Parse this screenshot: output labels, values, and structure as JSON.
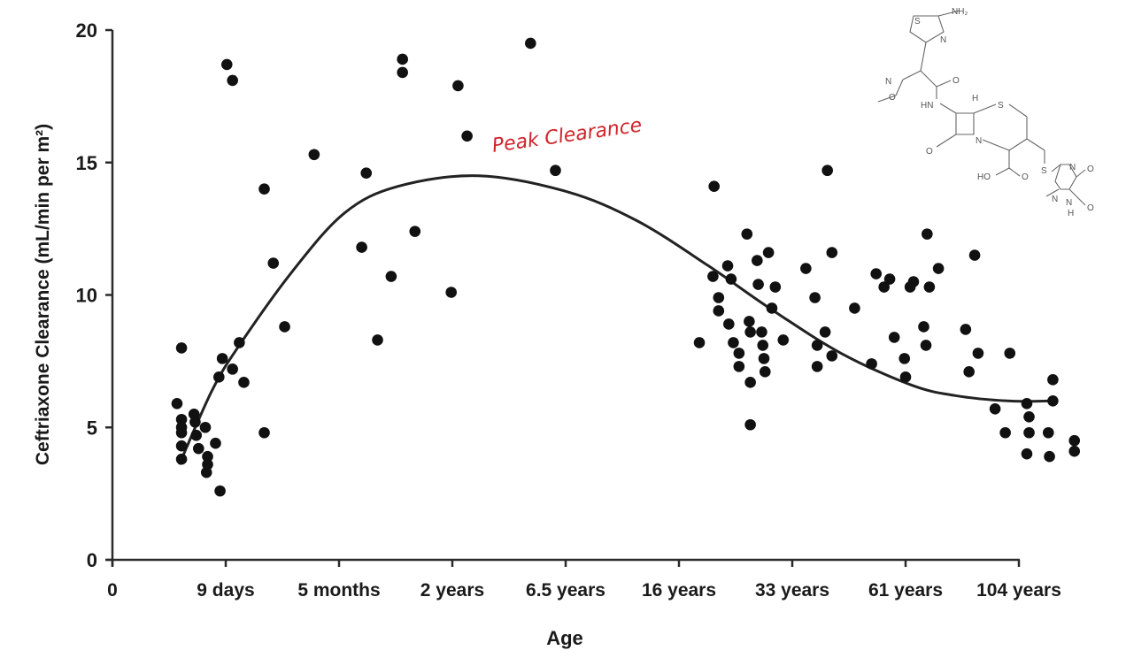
{
  "chart_data": {
    "type": "scatter",
    "title": "",
    "xlabel": "Age",
    "ylabel": "Ceftriaxone Clearance (mL/min per m²)",
    "x_tick_labels": [
      "0",
      "9 days",
      "5 months",
      "2 years",
      "6.5 years",
      "16 years",
      "33 years",
      "61 years",
      "104 years"
    ],
    "x_scale_note": "non-linear age axis; x given in tick-index units (0 = '0', 8 = '104 years')",
    "y_ticks": [
      0,
      5,
      10,
      15,
      20
    ],
    "ylim": [
      0,
      20
    ],
    "xlim": [
      0,
      8
    ],
    "grid": false,
    "legend": null,
    "annotations": [
      {
        "text": "Peak Clearance",
        "color": "#d0252c",
        "x": 3.3,
        "y": 16
      }
    ],
    "series": [
      {
        "name": "observed",
        "kind": "scatter",
        "color": "#111111",
        "points": [
          [
            0.57,
            5.9
          ],
          [
            0.61,
            8.0
          ],
          [
            0.61,
            5.3
          ],
          [
            0.61,
            5.0
          ],
          [
            0.61,
            4.8
          ],
          [
            0.61,
            4.3
          ],
          [
            0.61,
            3.8
          ],
          [
            0.73,
            5.2
          ],
          [
            0.72,
            5.5
          ],
          [
            0.74,
            4.7
          ],
          [
            0.76,
            4.2
          ],
          [
            0.82,
            5.0
          ],
          [
            0.84,
            3.9
          ],
          [
            0.84,
            3.6
          ],
          [
            0.83,
            3.3
          ],
          [
            0.91,
            4.4
          ],
          [
            0.95,
            2.6
          ],
          [
            0.94,
            6.9
          ],
          [
            0.97,
            7.6
          ],
          [
            1.06,
            7.2
          ],
          [
            1.12,
            8.2
          ],
          [
            1.16,
            6.7
          ],
          [
            1.01,
            18.7
          ],
          [
            1.06,
            18.1
          ],
          [
            1.34,
            14.0
          ],
          [
            1.42,
            11.2
          ],
          [
            1.34,
            4.8
          ],
          [
            1.52,
            8.8
          ],
          [
            1.78,
            15.3
          ],
          [
            2.2,
            11.8
          ],
          [
            2.24,
            14.6
          ],
          [
            2.34,
            8.3
          ],
          [
            2.46,
            10.7
          ],
          [
            2.56,
            18.9
          ],
          [
            2.56,
            18.4
          ],
          [
            2.67,
            12.4
          ],
          [
            2.99,
            10.1
          ],
          [
            3.05,
            17.9
          ],
          [
            3.13,
            16.0
          ],
          [
            3.69,
            19.5
          ],
          [
            3.91,
            14.7
          ],
          [
            5.18,
            8.2
          ],
          [
            5.31,
            14.1
          ],
          [
            5.3,
            10.7
          ],
          [
            5.35,
            9.9
          ],
          [
            5.35,
            9.4
          ],
          [
            5.43,
            11.1
          ],
          [
            5.46,
            10.6
          ],
          [
            5.44,
            8.9
          ],
          [
            5.48,
            8.2
          ],
          [
            5.53,
            7.8
          ],
          [
            5.53,
            7.3
          ],
          [
            5.6,
            12.3
          ],
          [
            5.62,
            9.0
          ],
          [
            5.63,
            8.6
          ],
          [
            5.63,
            6.7
          ],
          [
            5.63,
            5.1
          ],
          [
            5.69,
            11.3
          ],
          [
            5.7,
            10.4
          ],
          [
            5.73,
            8.6
          ],
          [
            5.74,
            8.1
          ],
          [
            5.75,
            7.6
          ],
          [
            5.76,
            7.1
          ],
          [
            5.79,
            11.6
          ],
          [
            5.82,
            9.5
          ],
          [
            5.85,
            10.3
          ],
          [
            5.92,
            8.3
          ],
          [
            6.12,
            11.0
          ],
          [
            6.2,
            9.9
          ],
          [
            6.22,
            8.1
          ],
          [
            6.22,
            7.3
          ],
          [
            6.29,
            8.6
          ],
          [
            6.31,
            14.7
          ],
          [
            6.35,
            11.6
          ],
          [
            6.35,
            7.7
          ],
          [
            6.55,
            9.5
          ],
          [
            6.7,
            7.4
          ],
          [
            6.74,
            10.8
          ],
          [
            6.81,
            10.3
          ],
          [
            6.86,
            10.6
          ],
          [
            6.9,
            8.4
          ],
          [
            6.99,
            7.6
          ],
          [
            7.0,
            6.9
          ],
          [
            7.07,
            10.5
          ],
          [
            7.04,
            10.3
          ],
          [
            7.16,
            8.8
          ],
          [
            7.18,
            8.1
          ],
          [
            7.19,
            12.3
          ],
          [
            7.21,
            10.3
          ],
          [
            7.29,
            11.0
          ],
          [
            7.61,
            11.5
          ],
          [
            7.53,
            8.7
          ],
          [
            7.56,
            7.1
          ],
          [
            7.64,
            7.8
          ],
          [
            7.79,
            5.7
          ],
          [
            7.92,
            7.8
          ],
          [
            7.88,
            4.8
          ],
          [
            8.07,
            5.9
          ],
          [
            8.09,
            5.4
          ],
          [
            8.09,
            4.8
          ],
          [
            8.07,
            4.0
          ],
          [
            8.26,
            4.8
          ],
          [
            8.27,
            3.9
          ],
          [
            8.3,
            6.8
          ],
          [
            8.3,
            6.0
          ],
          [
            8.49,
            4.5
          ],
          [
            8.49,
            4.1
          ]
        ]
      },
      {
        "name": "fitted curve",
        "kind": "line",
        "color": "#222222",
        "points": [
          [
            0.59,
            3.6
          ],
          [
            0.88,
            6.4
          ],
          [
            1.12,
            8.1
          ],
          [
            1.59,
            10.9
          ],
          [
            2.05,
            13.1
          ],
          [
            2.52,
            14.1
          ],
          [
            3.23,
            14.5
          ],
          [
            4.01,
            13.9
          ],
          [
            4.63,
            12.8
          ],
          [
            5.26,
            11.1
          ],
          [
            5.8,
            9.5
          ],
          [
            6.43,
            7.8
          ],
          [
            7.05,
            6.6
          ],
          [
            7.44,
            6.2
          ],
          [
            7.9,
            6.0
          ],
          [
            8.3,
            6.0
          ]
        ]
      }
    ]
  },
  "inset": {
    "name": "ceftriaxone-structure",
    "labels": [
      "NH₂",
      "S",
      "N",
      "N",
      "O",
      "O",
      "HN",
      "H",
      "S",
      "N",
      "O",
      "HO",
      "O",
      "S",
      "N",
      "O",
      "N",
      "N",
      "H",
      "O"
    ]
  }
}
